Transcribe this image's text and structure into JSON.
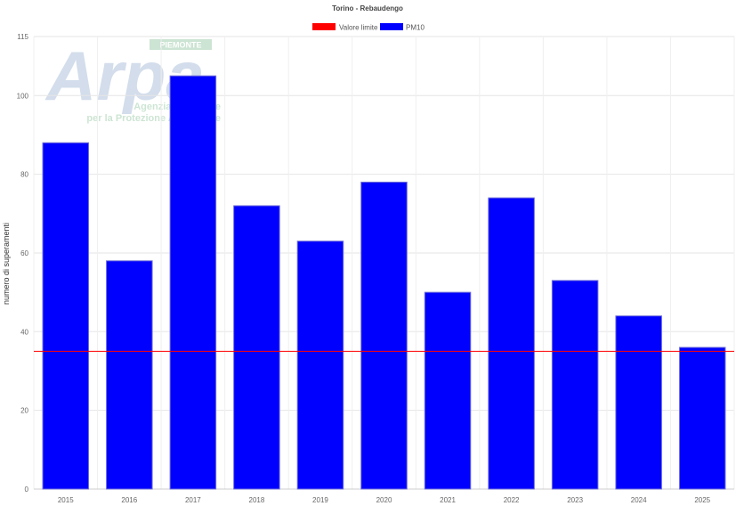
{
  "chart_data": {
    "type": "bar",
    "title": "Torino - Rebaudengo",
    "xlabel": "",
    "ylabel": "numero di superamenti",
    "categories": [
      "2015",
      "2016",
      "2017",
      "2018",
      "2019",
      "2020",
      "2021",
      "2022",
      "2023",
      "2024",
      "2025"
    ],
    "series": [
      {
        "name": "PM10",
        "values": [
          88,
          58,
          105,
          72,
          63,
          78,
          50,
          74,
          53,
          44,
          36
        ],
        "color": "#0000ff"
      }
    ],
    "reference_line": {
      "name": "Valore limite",
      "value": 35,
      "color": "#ff0000"
    },
    "ylim": [
      0,
      115
    ],
    "yticks": [
      0,
      20,
      40,
      60,
      80,
      100,
      115
    ],
    "grid": true,
    "legend_position": "top-center"
  },
  "watermark": {
    "logo_text": "Arpa",
    "region_text": "PIEMONTE",
    "tagline_line1": "Agenzia Regionale",
    "tagline_line2": "per la Protezione Ambientale"
  }
}
